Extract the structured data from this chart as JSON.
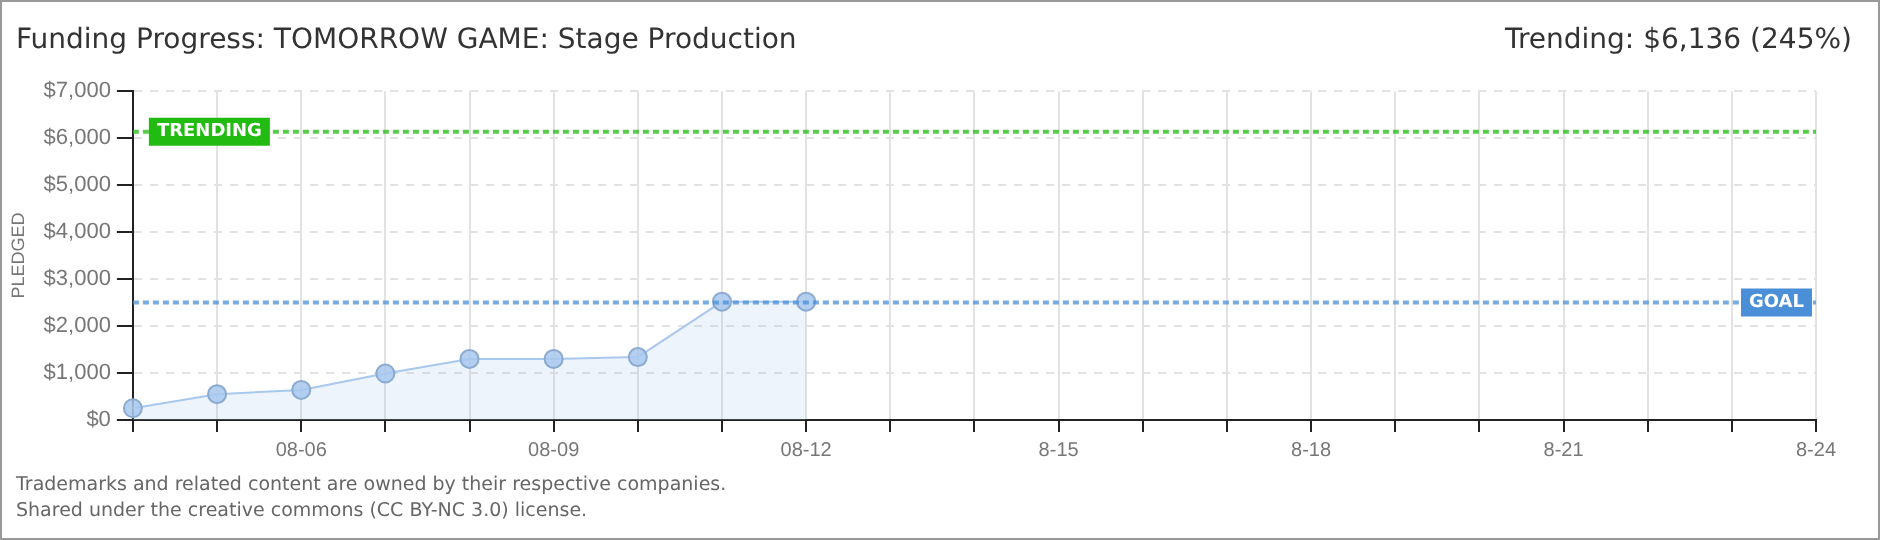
{
  "chart_data": {
    "type": "area",
    "title": "Funding Progress: TOMORROW GAME: Stage Production",
    "subtitle": "Trending: $6,136 (245%)",
    "ylabel": "PLEDGED",
    "categories": [
      null,
      null,
      "08-06",
      null,
      null,
      "08-09",
      null,
      null,
      "08-12",
      null,
      null,
      "8-15",
      null,
      null,
      "8-18",
      null,
      null,
      "8-21",
      null,
      null,
      "8-24"
    ],
    "series": [
      {
        "color": "#a8c8ee",
        "values": [
          250,
          550,
          640,
          990,
          1300,
          1300,
          1340,
          2520,
          2520,
          null,
          null,
          null,
          null,
          null,
          null,
          null,
          null,
          null,
          null,
          null,
          null
        ]
      }
    ],
    "ylim": [
      0,
      7000
    ],
    "yticks": [
      {
        "value": 0,
        "label": "$0"
      },
      {
        "value": 1000,
        "label": "$1,000"
      },
      {
        "value": 2000,
        "label": "$2,000"
      },
      {
        "value": 3000,
        "label": "$3,000"
      },
      {
        "value": 4000,
        "label": "$4,000"
      },
      {
        "value": 5000,
        "label": "$5,000"
      },
      {
        "value": 6000,
        "label": "$6,000"
      },
      {
        "value": 7000,
        "label": "$7,000"
      }
    ],
    "ref_lines": [
      {
        "axis": "y",
        "value": 6136,
        "label": "TRENDING",
        "color": "#22bb11",
        "line_style": "dotted"
      },
      {
        "axis": "y",
        "value": 2500,
        "label": "GOAL",
        "color": "#4a8fd8",
        "line_style": "dotted"
      }
    ],
    "grid": true,
    "marker": "circle",
    "legend": false,
    "annotations": [
      "Trademarks and related content are owned by their respective companies.",
      "Shared under the creative commons (CC BY-NC 3.0) license."
    ]
  }
}
